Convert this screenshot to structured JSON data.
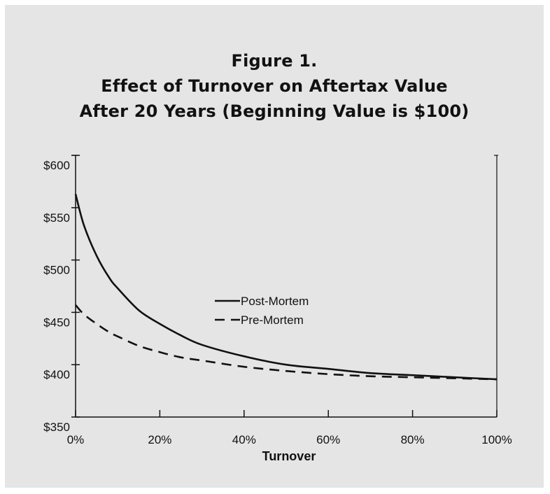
{
  "chart_data": {
    "type": "line",
    "title_lines": [
      "Figure 1.",
      "Effect of Turnover on Aftertax Value",
      "After 20 Years (Beginning Value is $100)"
    ],
    "xlabel": "Turnover",
    "ylabel": "",
    "xlim": [
      0,
      100
    ],
    "ylim": [
      350,
      600
    ],
    "x_ticks": [
      0,
      20,
      40,
      60,
      80,
      100
    ],
    "x_tick_labels": [
      "0%",
      "20%",
      "40%",
      "60%",
      "80%",
      "100%"
    ],
    "y_ticks": [
      350,
      400,
      450,
      500,
      550,
      600
    ],
    "y_tick_labels": [
      "$350",
      "$400",
      "$450",
      "$500",
      "$550",
      "$600"
    ],
    "grid": false,
    "legend_position": "center",
    "series": [
      {
        "name": "Post-Mortem",
        "style": "solid",
        "x": [
          0,
          2,
          5,
          8,
          10,
          15,
          20,
          25,
          30,
          40,
          50,
          60,
          70,
          80,
          90,
          100
        ],
        "y": [
          563,
          533,
          504,
          483,
          473,
          452,
          439,
          428,
          419,
          408,
          400,
          396,
          392,
          390,
          388,
          386
        ]
      },
      {
        "name": "Pre-Mortem",
        "style": "dashed",
        "x": [
          0,
          2,
          5,
          8,
          10,
          15,
          20,
          25,
          30,
          40,
          50,
          60,
          70,
          80,
          90,
          100
        ],
        "y": [
          457,
          448,
          439,
          431,
          427,
          418,
          412,
          407,
          404,
          398,
          394,
          391,
          389,
          388,
          387,
          386
        ]
      }
    ],
    "colors": {
      "line": "#111111",
      "plot_background": "#e5e5e5",
      "frame": "#111111"
    }
  }
}
